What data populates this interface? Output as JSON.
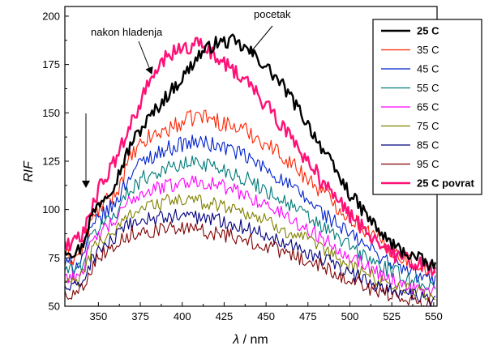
{
  "chart_data": {
    "type": "line",
    "xlabel_symbol": "λ",
    "xlabel_unit": " / nm",
    "ylabel": "RIF",
    "xlim": [
      330,
      552
    ],
    "ylim": [
      50,
      205
    ],
    "x_ticks": [
      350,
      375,
      400,
      425,
      450,
      475,
      500,
      525,
      550
    ],
    "y_ticks": [
      50,
      75,
      100,
      125,
      150,
      175,
      200
    ],
    "grid": false,
    "legend_position": "top-right",
    "annotations": [
      {
        "text": "nakon hladenja"
      },
      {
        "text": "pocetak"
      }
    ],
    "series": [
      {
        "name": "25 C",
        "color": "#000000",
        "bold": true,
        "noise": 2.2,
        "x": [
          330,
          335,
          340,
          345,
          350,
          360,
          370,
          380,
          390,
          400,
          410,
          420,
          430,
          440,
          450,
          460,
          470,
          480,
          490,
          500,
          510,
          520,
          530,
          540,
          550
        ],
        "y": [
          80,
          78,
          80,
          95,
          103,
          114,
          135,
          147,
          158,
          168,
          180,
          186,
          187,
          182,
          174,
          164,
          151,
          137,
          122,
          108,
          97,
          86,
          79,
          75,
          70
        ]
      },
      {
        "name": "35 C",
        "color": "#ff2200",
        "bold": false,
        "noise": 2.8,
        "x": [
          330,
          335,
          340,
          345,
          350,
          360,
          370,
          380,
          390,
          400,
          410,
          420,
          430,
          440,
          450,
          460,
          470,
          480,
          490,
          500,
          510,
          520,
          530,
          540,
          550
        ],
        "y": [
          76,
          75,
          78,
          92,
          100,
          108,
          128,
          137,
          141,
          145,
          149,
          146,
          143,
          140,
          134,
          128,
          120,
          112,
          104,
          96,
          89,
          82,
          76,
          72,
          68
        ]
      },
      {
        "name": "45 C",
        "color": "#0022cc",
        "bold": false,
        "noise": 2.6,
        "x": [
          330,
          335,
          340,
          345,
          350,
          360,
          370,
          380,
          390,
          400,
          410,
          420,
          430,
          440,
          450,
          460,
          470,
          480,
          490,
          500,
          510,
          520,
          530,
          540,
          550
        ],
        "y": [
          72,
          71,
          74,
          88,
          95,
          103,
          120,
          127,
          131,
          134,
          135,
          133,
          131,
          126,
          121,
          115,
          108,
          101,
          94,
          87,
          81,
          75,
          70,
          66,
          63
        ]
      },
      {
        "name": "55 C",
        "color": "#007a7a",
        "bold": false,
        "noise": 2.6,
        "x": [
          330,
          335,
          340,
          345,
          350,
          360,
          370,
          380,
          390,
          400,
          410,
          420,
          430,
          440,
          450,
          460,
          470,
          480,
          490,
          500,
          510,
          520,
          530,
          540,
          550
        ],
        "y": [
          69,
          68,
          71,
          84,
          91,
          98,
          112,
          118,
          121,
          123,
          125,
          122,
          119,
          115,
          110,
          105,
          99,
          93,
          87,
          81,
          75,
          70,
          66,
          63,
          60
        ]
      },
      {
        "name": "65 C",
        "color": "#ff00ff",
        "bold": false,
        "noise": 2.4,
        "x": [
          330,
          335,
          340,
          345,
          350,
          360,
          370,
          380,
          390,
          400,
          410,
          420,
          430,
          440,
          450,
          460,
          470,
          480,
          490,
          500,
          510,
          520,
          530,
          540,
          550
        ],
        "y": [
          66,
          65,
          68,
          80,
          87,
          94,
          106,
          110,
          112,
          114,
          115,
          113,
          110,
          107,
          102,
          98,
          92,
          87,
          82,
          76,
          71,
          66,
          62,
          59,
          57
        ]
      },
      {
        "name": "75 C",
        "color": "#808000",
        "bold": false,
        "noise": 2.4,
        "x": [
          330,
          335,
          340,
          345,
          350,
          360,
          370,
          380,
          390,
          400,
          410,
          420,
          430,
          440,
          450,
          460,
          470,
          480,
          490,
          500,
          510,
          520,
          530,
          540,
          550
        ],
        "y": [
          63,
          62,
          65,
          77,
          83,
          89,
          99,
          102,
          104,
          105,
          104,
          103,
          101,
          98,
          94,
          90,
          86,
          81,
          76,
          71,
          67,
          63,
          60,
          57,
          55
        ]
      },
      {
        "name": "85 C",
        "color": "#000080",
        "bold": false,
        "noise": 2.4,
        "x": [
          330,
          335,
          340,
          345,
          350,
          360,
          370,
          380,
          390,
          400,
          410,
          420,
          430,
          440,
          450,
          460,
          470,
          480,
          490,
          500,
          510,
          520,
          530,
          540,
          550
        ],
        "y": [
          60,
          59,
          62,
          72,
          79,
          85,
          93,
          95,
          96,
          97,
          96,
          95,
          93,
          90,
          87,
          84,
          80,
          76,
          72,
          67,
          63,
          60,
          57,
          55,
          53
        ]
      },
      {
        "name": "95 C",
        "color": "#800000",
        "bold": false,
        "noise": 2.4,
        "x": [
          330,
          335,
          340,
          345,
          350,
          360,
          370,
          380,
          390,
          400,
          410,
          420,
          430,
          440,
          450,
          460,
          470,
          480,
          490,
          500,
          510,
          520,
          530,
          540,
          550
        ],
        "y": [
          57,
          56,
          59,
          69,
          76,
          82,
          88,
          89,
          90,
          90,
          89,
          88,
          86,
          84,
          81,
          78,
          75,
          72,
          68,
          64,
          60,
          57,
          55,
          53,
          51
        ]
      },
      {
        "name": "25 C povrat",
        "color": "#ff1177",
        "bold": true,
        "noise": 2.6,
        "x": [
          330,
          335,
          340,
          345,
          350,
          360,
          370,
          380,
          390,
          400,
          410,
          420,
          430,
          440,
          450,
          460,
          470,
          480,
          490,
          500,
          510,
          520,
          530,
          540,
          550
        ],
        "y": [
          82,
          83,
          85,
          100,
          110,
          125,
          145,
          165,
          178,
          184,
          185,
          180,
          173,
          164,
          154,
          143,
          131,
          119,
          107,
          97,
          89,
          81,
          75,
          72,
          68
        ]
      }
    ]
  }
}
